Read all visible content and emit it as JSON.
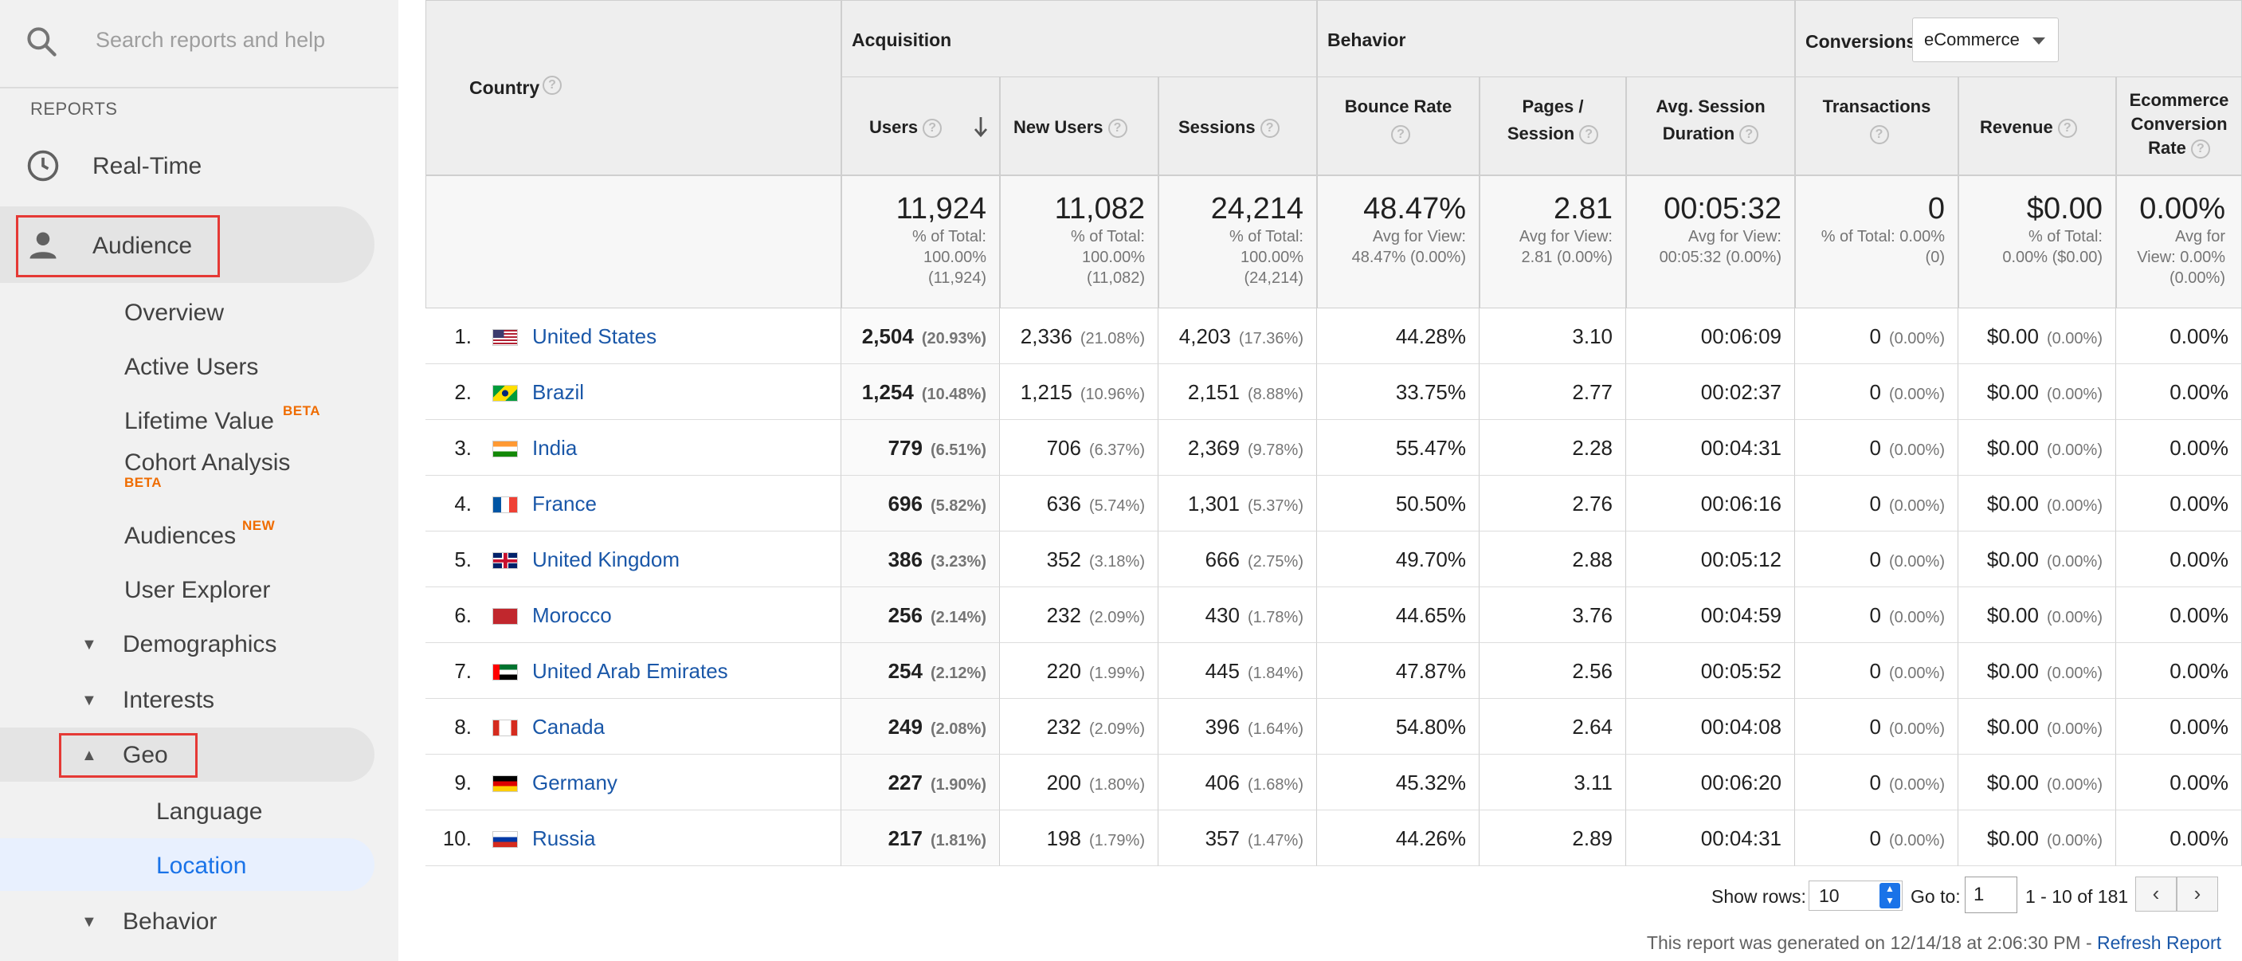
{
  "sidebar": {
    "search_placeholder": "Search reports and help",
    "section_label": "REPORTS",
    "realtime": "Real-Time",
    "audience": "Audience",
    "items": {
      "overview": "Overview",
      "active_users": "Active Users",
      "lifetime_value": "Lifetime Value",
      "lifetime_badge": "BETA",
      "cohort": "Cohort Analysis",
      "cohort_badge": "BETA",
      "audiences": "Audiences",
      "audiences_badge": "NEW",
      "user_explorer": "User Explorer",
      "demographics": "Demographics",
      "interests": "Interests",
      "geo": "Geo",
      "language": "Language",
      "location": "Location",
      "behavior": "Behavior"
    }
  },
  "table": {
    "country_header": "Country",
    "groups": {
      "acquisition": "Acquisition",
      "behavior": "Behavior",
      "conversions": "Conversions",
      "conversions_select": "eCommerce"
    },
    "columns": {
      "users": "Users",
      "new_users": "New Users",
      "sessions": "Sessions",
      "bounce_rate": "Bounce Rate",
      "pages_session_1": "Pages /",
      "pages_session_2": "Session",
      "avg_duration_1": "Avg. Session",
      "avg_duration_2": "Duration",
      "transactions": "Transactions",
      "revenue": "Revenue",
      "ecr_1": "Ecommerce",
      "ecr_2": "Conversion",
      "ecr_3": "Rate"
    },
    "totals": {
      "users": {
        "value": "11,924",
        "l1": "% of Total:",
        "l2": "100.00%",
        "l3": "(11,924)"
      },
      "new_users": {
        "value": "11,082",
        "l1": "% of Total:",
        "l2": "100.00%",
        "l3": "(11,082)"
      },
      "sessions": {
        "value": "24,214",
        "l1": "% of Total:",
        "l2": "100.00%",
        "l3": "(24,214)"
      },
      "bounce_rate": {
        "value": "48.47%",
        "l1": "Avg for View:",
        "l2": "48.47% (0.00%)",
        "l3": ""
      },
      "pages_session": {
        "value": "2.81",
        "l1": "Avg for View:",
        "l2": "2.81 (0.00%)",
        "l3": ""
      },
      "avg_duration": {
        "value": "00:05:32",
        "l1": "Avg for View:",
        "l2": "00:05:32 (0.00%)",
        "l3": ""
      },
      "transactions": {
        "value": "0",
        "l1": "% of Total: 0.00%",
        "l2": "(0)",
        "l3": ""
      },
      "revenue": {
        "value": "$0.00",
        "l1": "% of Total:",
        "l2": "0.00% ($0.00)",
        "l3": ""
      },
      "ecr": {
        "value": "0.00%",
        "l1": "Avg for",
        "l2": "View: 0.00%",
        "l3": "(0.00%)"
      }
    },
    "rows": [
      {
        "rank": "1.",
        "country": "United States",
        "flag": "us",
        "users": "2,504",
        "users_pct": "(20.93%)",
        "new_users": "2,336",
        "new_users_pct": "(21.08%)",
        "sessions": "4,203",
        "sessions_pct": "(17.36%)",
        "bounce": "44.28%",
        "pages": "3.10",
        "duration": "00:06:09",
        "trans": "0",
        "trans_pct": "(0.00%)",
        "revenue": "$0.00",
        "revenue_pct": "(0.00%)",
        "ecr": "0.00%"
      },
      {
        "rank": "2.",
        "country": "Brazil",
        "flag": "br",
        "users": "1,254",
        "users_pct": "(10.48%)",
        "new_users": "1,215",
        "new_users_pct": "(10.96%)",
        "sessions": "2,151",
        "sessions_pct": "(8.88%)",
        "bounce": "33.75%",
        "pages": "2.77",
        "duration": "00:02:37",
        "trans": "0",
        "trans_pct": "(0.00%)",
        "revenue": "$0.00",
        "revenue_pct": "(0.00%)",
        "ecr": "0.00%"
      },
      {
        "rank": "3.",
        "country": "India",
        "flag": "in",
        "users": "779",
        "users_pct": "(6.51%)",
        "new_users": "706",
        "new_users_pct": "(6.37%)",
        "sessions": "2,369",
        "sessions_pct": "(9.78%)",
        "bounce": "55.47%",
        "pages": "2.28",
        "duration": "00:04:31",
        "trans": "0",
        "trans_pct": "(0.00%)",
        "revenue": "$0.00",
        "revenue_pct": "(0.00%)",
        "ecr": "0.00%"
      },
      {
        "rank": "4.",
        "country": "France",
        "flag": "fr",
        "users": "696",
        "users_pct": "(5.82%)",
        "new_users": "636",
        "new_users_pct": "(5.74%)",
        "sessions": "1,301",
        "sessions_pct": "(5.37%)",
        "bounce": "50.50%",
        "pages": "2.76",
        "duration": "00:06:16",
        "trans": "0",
        "trans_pct": "(0.00%)",
        "revenue": "$0.00",
        "revenue_pct": "(0.00%)",
        "ecr": "0.00%"
      },
      {
        "rank": "5.",
        "country": "United Kingdom",
        "flag": "gb",
        "users": "386",
        "users_pct": "(3.23%)",
        "new_users": "352",
        "new_users_pct": "(3.18%)",
        "sessions": "666",
        "sessions_pct": "(2.75%)",
        "bounce": "49.70%",
        "pages": "2.88",
        "duration": "00:05:12",
        "trans": "0",
        "trans_pct": "(0.00%)",
        "revenue": "$0.00",
        "revenue_pct": "(0.00%)",
        "ecr": "0.00%"
      },
      {
        "rank": "6.",
        "country": "Morocco",
        "flag": "ma",
        "users": "256",
        "users_pct": "(2.14%)",
        "new_users": "232",
        "new_users_pct": "(2.09%)",
        "sessions": "430",
        "sessions_pct": "(1.78%)",
        "bounce": "44.65%",
        "pages": "3.76",
        "duration": "00:04:59",
        "trans": "0",
        "trans_pct": "(0.00%)",
        "revenue": "$0.00",
        "revenue_pct": "(0.00%)",
        "ecr": "0.00%"
      },
      {
        "rank": "7.",
        "country": "United Arab Emirates",
        "flag": "ae",
        "users": "254",
        "users_pct": "(2.12%)",
        "new_users": "220",
        "new_users_pct": "(1.99%)",
        "sessions": "445",
        "sessions_pct": "(1.84%)",
        "bounce": "47.87%",
        "pages": "2.56",
        "duration": "00:05:52",
        "trans": "0",
        "trans_pct": "(0.00%)",
        "revenue": "$0.00",
        "revenue_pct": "(0.00%)",
        "ecr": "0.00%"
      },
      {
        "rank": "8.",
        "country": "Canada",
        "flag": "ca",
        "users": "249",
        "users_pct": "(2.08%)",
        "new_users": "232",
        "new_users_pct": "(2.09%)",
        "sessions": "396",
        "sessions_pct": "(1.64%)",
        "bounce": "54.80%",
        "pages": "2.64",
        "duration": "00:04:08",
        "trans": "0",
        "trans_pct": "(0.00%)",
        "revenue": "$0.00",
        "revenue_pct": "(0.00%)",
        "ecr": "0.00%"
      },
      {
        "rank": "9.",
        "country": "Germany",
        "flag": "de",
        "users": "227",
        "users_pct": "(1.90%)",
        "new_users": "200",
        "new_users_pct": "(1.80%)",
        "sessions": "406",
        "sessions_pct": "(1.68%)",
        "bounce": "45.32%",
        "pages": "3.11",
        "duration": "00:06:20",
        "trans": "0",
        "trans_pct": "(0.00%)",
        "revenue": "$0.00",
        "revenue_pct": "(0.00%)",
        "ecr": "0.00%"
      },
      {
        "rank": "10.",
        "country": "Russia",
        "flag": "ru",
        "users": "217",
        "users_pct": "(1.81%)",
        "new_users": "198",
        "new_users_pct": "(1.79%)",
        "sessions": "357",
        "sessions_pct": "(1.47%)",
        "bounce": "44.26%",
        "pages": "2.89",
        "duration": "00:04:31",
        "trans": "0",
        "trans_pct": "(0.00%)",
        "revenue": "$0.00",
        "revenue_pct": "(0.00%)",
        "ecr": "0.00%"
      }
    ]
  },
  "footer": {
    "show_rows_label": "Show rows:",
    "show_rows_value": "10",
    "goto_label": "Go to:",
    "goto_value": "1",
    "range": "1 - 10 of 181",
    "generated": "This report was generated on 12/14/18 at 2:06:30 PM - ",
    "refresh": "Refresh Report"
  },
  "colors": {
    "link": "#1a57a8",
    "highlight_box": "#e53935",
    "badge": "#ef6c00",
    "active_item_bg": "#e8f0fe"
  }
}
